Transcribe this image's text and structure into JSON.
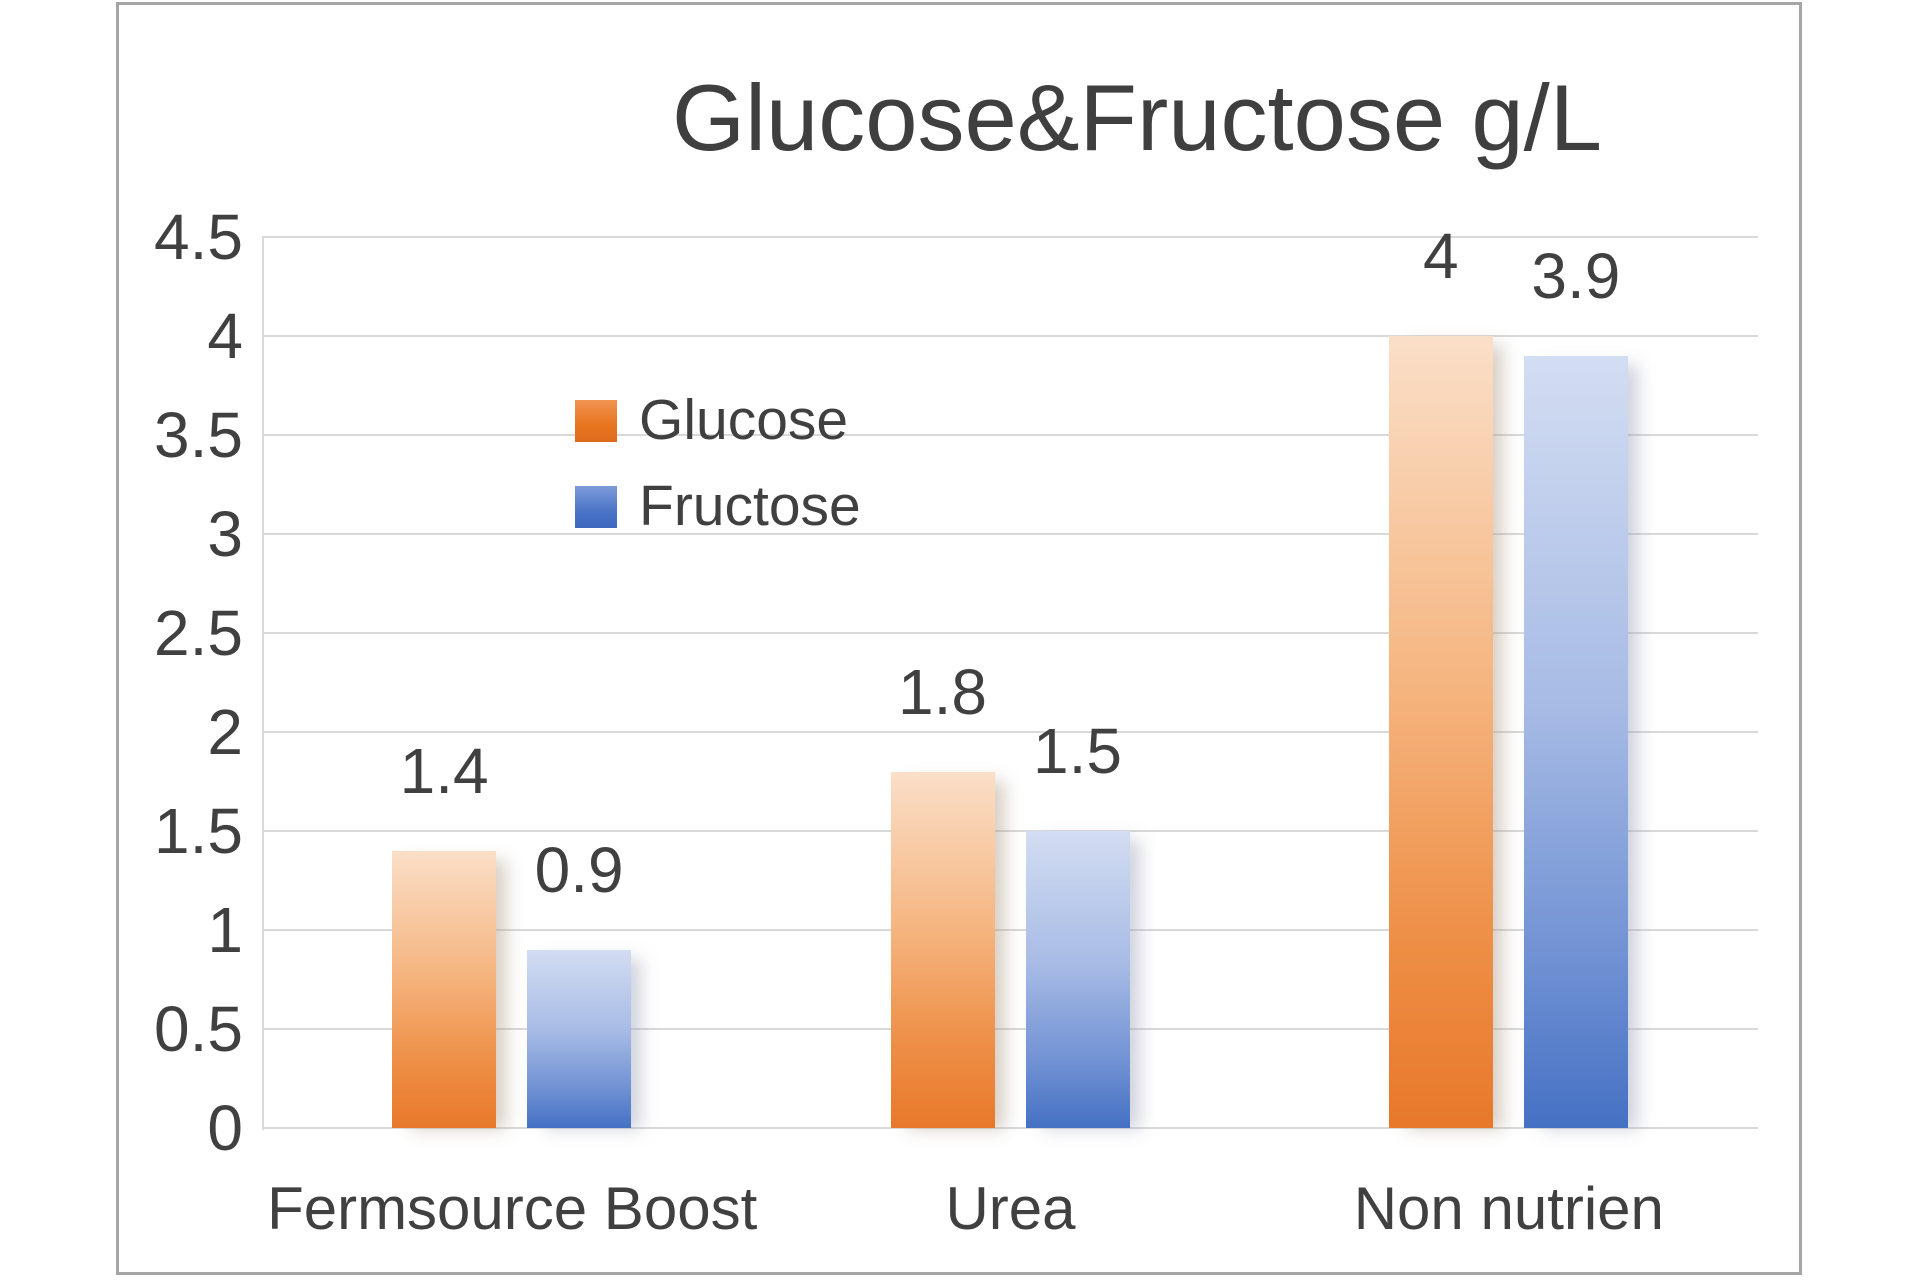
{
  "chart_data": {
    "type": "bar",
    "title": "Glucose&Fructose g/L",
    "categories": [
      "Fermsource Boost",
      "Urea",
      "Non nutrien"
    ],
    "series": [
      {
        "name": "Glucose",
        "values": [
          1.4,
          1.8,
          4
        ],
        "labels": [
          "1.4",
          "1.8",
          "4"
        ],
        "color": "#ed7d31",
        "gradient_top": "#fadfc8",
        "gradient_bottom": "#e8782a"
      },
      {
        "name": "Fructose",
        "values": [
          0.9,
          1.5,
          3.9
        ],
        "labels": [
          "0.9",
          "1.5",
          "3.9"
        ],
        "color": "#4472c4",
        "gradient_top": "#d3ddf2",
        "gradient_bottom": "#4571c4"
      }
    ],
    "y_ticks": [
      "4.5",
      "4",
      "3.5",
      "3",
      "2.5",
      "2",
      "1.5",
      "1",
      "0.5",
      "0"
    ],
    "ylim": [
      0,
      4.5
    ],
    "y_tick_step": 0.5,
    "grid": true,
    "legend_position": "inside-center-left",
    "data_labels_position": "outside-end",
    "colors": {
      "text": "#404040",
      "title": "#3f3f3f",
      "gridline": "#d9d9d9",
      "frame_border": "#a6a6a6",
      "background": "#ffffff"
    }
  }
}
